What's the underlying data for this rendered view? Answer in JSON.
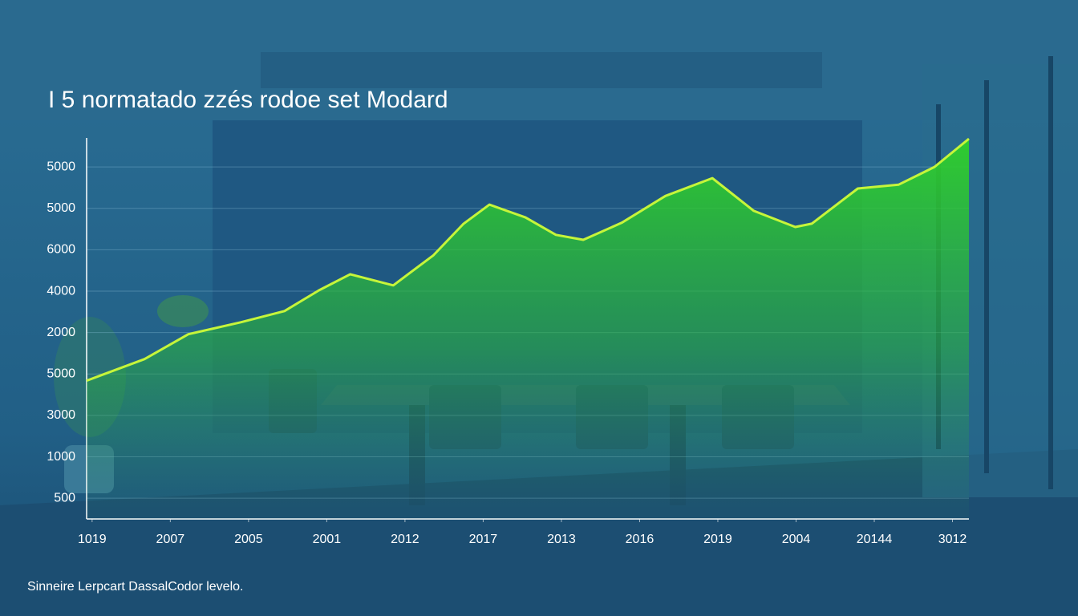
{
  "chart_data": {
    "type": "line",
    "title": "I 5 normatado zzés rodoe set Modard",
    "footnote": "Sinneire Lerpcart DassalCodor levelo.",
    "x": [
      -0.07,
      0.67,
      1.23,
      1.9,
      2.46,
      2.9,
      3.3,
      3.85,
      4.36,
      4.75,
      5.08,
      5.54,
      5.93,
      6.28,
      6.77,
      7.33,
      7.93,
      8.46,
      8.99,
      9.2,
      9.79,
      10.31,
      10.77,
      11.21
    ],
    "series": [
      {
        "color": "#c6f53a",
        "values": [
          2.84,
          3.36,
          3.96,
          4.25,
          4.52,
          5.02,
          5.41,
          5.14,
          5.86,
          6.63,
          7.09,
          6.78,
          6.36,
          6.24,
          6.65,
          7.3,
          7.73,
          6.94,
          6.55,
          6.63,
          7.48,
          7.57,
          8.0,
          8.68
        ]
      }
    ],
    "xlim": [
      -0.07,
      11.21
    ],
    "xticks": [
      {
        "value": 0,
        "label": "1019"
      },
      {
        "value": 1,
        "label": "2007"
      },
      {
        "value": 2,
        "label": "2005"
      },
      {
        "value": 3,
        "label": "2001"
      },
      {
        "value": 4,
        "label": "2012"
      },
      {
        "value": 5,
        "label": "2017"
      },
      {
        "value": 6,
        "label": "2013"
      },
      {
        "value": 7,
        "label": "2016"
      },
      {
        "value": 8,
        "label": "2019"
      },
      {
        "value": 9,
        "label": "2004"
      },
      {
        "value": 10,
        "label": "20144"
      },
      {
        "value": 11,
        "label": "3012"
      }
    ],
    "ylim": [
      -0.5,
      8.7
    ],
    "yticks": [
      {
        "value": 0,
        "label": "500"
      },
      {
        "value": 1,
        "label": "1000"
      },
      {
        "value": 2,
        "label": "3000"
      },
      {
        "value": 3,
        "label": "5000"
      },
      {
        "value": 4,
        "label": "2000"
      },
      {
        "value": 5,
        "label": "4000"
      },
      {
        "value": 6,
        "label": "6000"
      },
      {
        "value": 7,
        "label": "5000"
      },
      {
        "value": 8,
        "label": "5000"
      }
    ],
    "grid": true,
    "area": true
  }
}
